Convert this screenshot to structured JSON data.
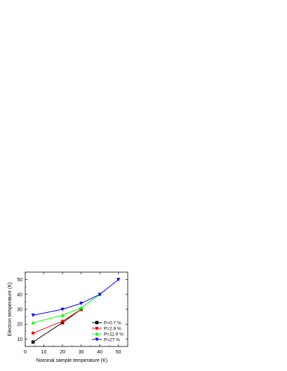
{
  "chart_data": {
    "type": "line",
    "xlabel": "Nominal sample temperature (K)",
    "ylabel": "Electron temperature (K)",
    "xlim": [
      0,
      55
    ],
    "ylim": [
      5,
      55
    ],
    "xticks": [
      0,
      10,
      20,
      30,
      40,
      50
    ],
    "yticks": [
      10,
      20,
      30,
      40,
      50
    ],
    "legend_position": "bottom-right",
    "grid": false,
    "series": [
      {
        "name": "P=0.7 %",
        "color": "#000000",
        "marker": "square",
        "x": [
          4.2,
          20,
          30
        ],
        "y": [
          8,
          21,
          30
        ]
      },
      {
        "name": "P=2.9 %",
        "color": "#ff0000",
        "marker": "circle",
        "x": [
          4.2,
          20,
          30
        ],
        "y": [
          14,
          22,
          30
        ]
      },
      {
        "name": "P=11.9 %",
        "color": "#00ff00",
        "marker": "triangle-up",
        "x": [
          4.2,
          20,
          30,
          40
        ],
        "y": [
          21,
          26,
          31,
          40
        ]
      },
      {
        "name": "P=27 %",
        "color": "#0000ff",
        "marker": "triangle-down",
        "x": [
          4.2,
          20,
          30,
          40,
          50
        ],
        "y": [
          26,
          30,
          34,
          40,
          50
        ]
      }
    ]
  }
}
